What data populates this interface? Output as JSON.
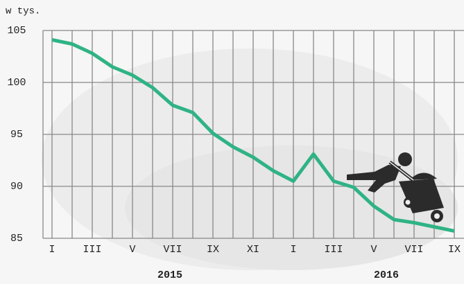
{
  "chart_data": {
    "type": "line",
    "y_label": "w tys.",
    "categories": [
      "I",
      null,
      "III",
      null,
      "V",
      null,
      "VII",
      null,
      "IX",
      null,
      "XI",
      null,
      "I",
      null,
      "III",
      null,
      "V",
      null,
      "VII",
      null,
      "IX"
    ],
    "year_labels": [
      "2015",
      "2016"
    ],
    "series": [
      {
        "color": "#2fb385",
        "values": [
          104.1,
          103.7,
          102.8,
          101.5,
          100.7,
          99.5,
          97.8,
          97.1,
          95.1,
          93.8,
          92.8,
          91.5,
          90.5,
          93.1,
          90.5,
          89.9,
          88.1,
          86.8,
          86.5,
          86.1,
          85.7
        ]
      }
    ],
    "ylim": [
      85,
      105
    ],
    "yticks": [
      85,
      90,
      95,
      100,
      105
    ],
    "grid": true
  }
}
